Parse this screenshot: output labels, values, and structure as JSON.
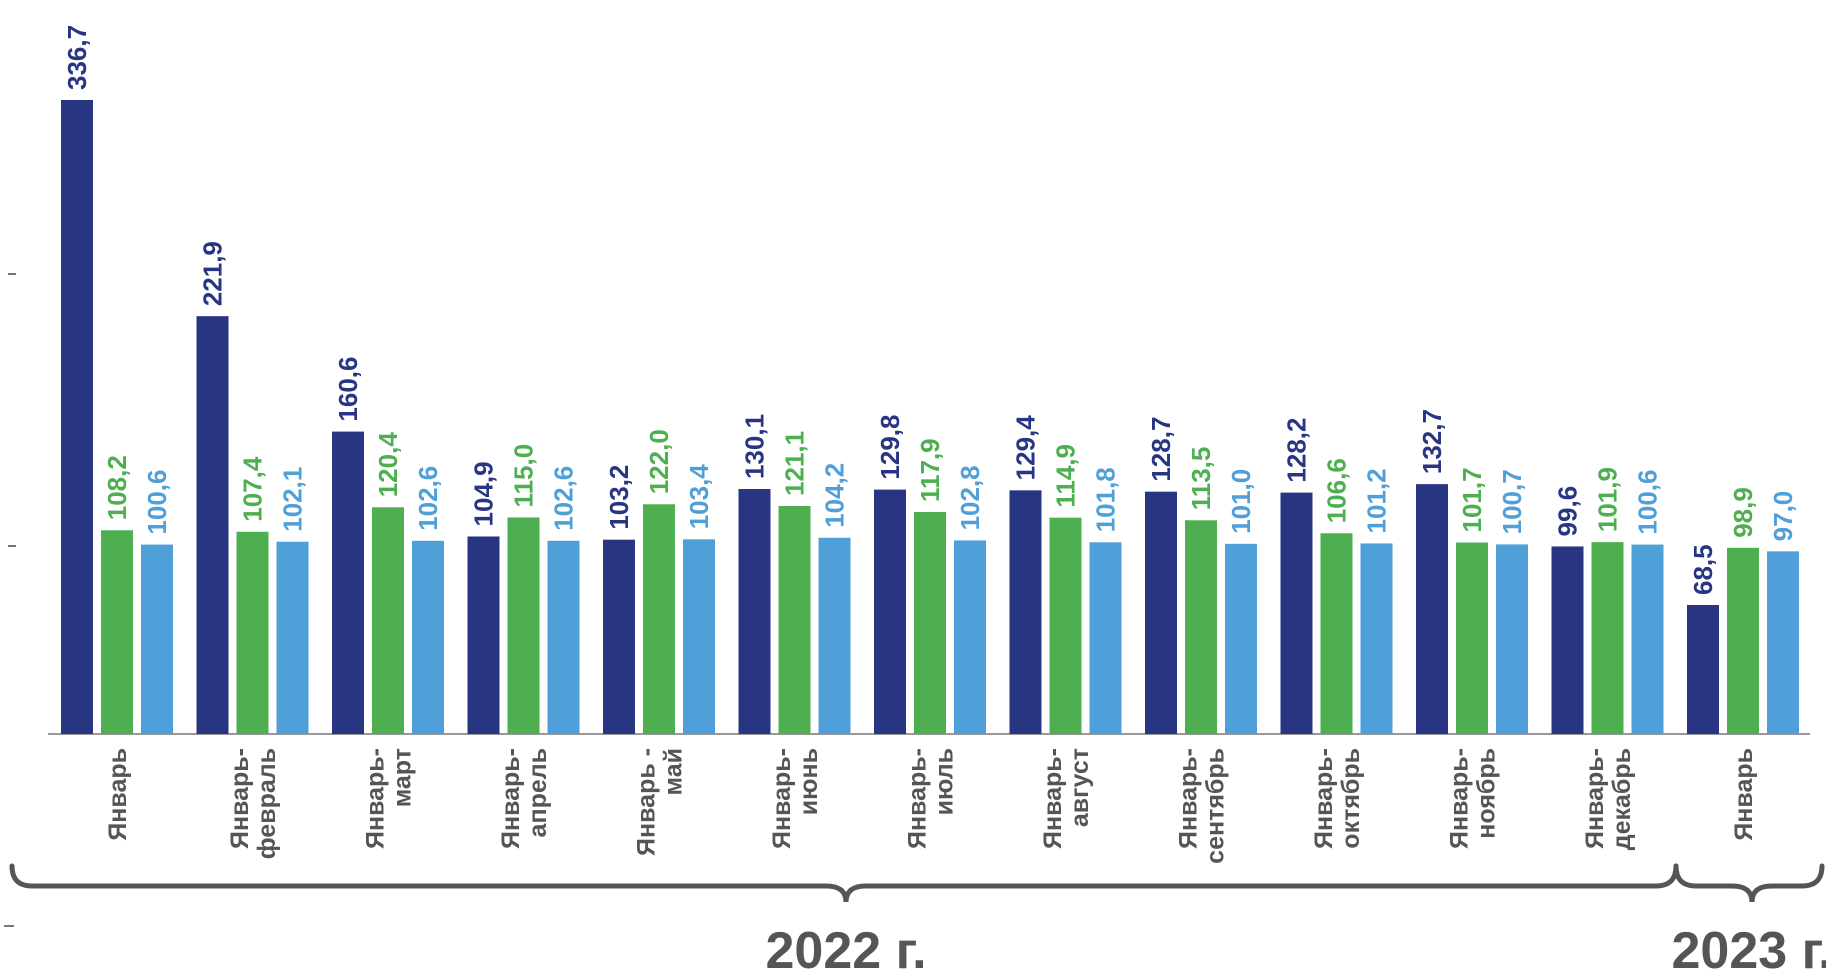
{
  "chart_data": {
    "type": "bar",
    "categories": [
      [
        "Январь"
      ],
      [
        "Январь-",
        "февраль"
      ],
      [
        "Январь-",
        "март"
      ],
      [
        "Январь-",
        "апрель"
      ],
      [
        "Январь -",
        "май"
      ],
      [
        "Январь-",
        "июнь"
      ],
      [
        "Январь-",
        "июль"
      ],
      [
        "Январь-",
        "август"
      ],
      [
        "Январь-",
        "сентябрь"
      ],
      [
        "Январь-",
        "октябрь"
      ],
      [
        "Январь-",
        "ноябрь"
      ],
      [
        "Январь-",
        "декабрь"
      ],
      [
        "Январь"
      ]
    ],
    "series": [
      {
        "color": "#283583",
        "values": [
          336.7,
          221.9,
          160.6,
          104.9,
          103.2,
          130.1,
          129.8,
          129.4,
          128.7,
          128.2,
          132.7,
          99.6,
          68.5
        ],
        "labels": [
          "336,7",
          "221,9",
          "160,6",
          "104,9",
          "103,2",
          "130,1",
          "129,8",
          "129,4",
          "128,7",
          "128,2",
          "132,7",
          "99,6",
          "68,5"
        ]
      },
      {
        "color": "#4daf50",
        "values": [
          108.2,
          107.4,
          120.4,
          115.0,
          122.0,
          121.1,
          117.9,
          114.9,
          113.5,
          106.6,
          101.7,
          101.9,
          98.9
        ],
        "labels": [
          "108,2",
          "107,4",
          "120,4",
          "115,0",
          "122,0",
          "121,1",
          "117,9",
          "114,9",
          "113,5",
          "106,6",
          "101,7",
          "101,9",
          "98,9"
        ]
      },
      {
        "color": "#4f9fd8",
        "values": [
          100.6,
          102.1,
          102.6,
          102.6,
          103.4,
          104.2,
          102.8,
          101.8,
          101.0,
          101.2,
          100.7,
          100.6,
          97.0
        ],
        "labels": [
          "100,6",
          "102,1",
          "102,6",
          "102,6",
          "103,4",
          "104,2",
          "102,8",
          "101,8",
          "101,0",
          "101,2",
          "100,7",
          "100,6",
          "97,0"
        ]
      }
    ],
    "ylim": [
      0,
      336.7
    ],
    "grid": false,
    "groups": [
      {
        "label": "2022 г.",
        "from": 0,
        "to": 11
      },
      {
        "label": "2023 г.",
        "from": 12,
        "to": 12
      }
    ]
  }
}
